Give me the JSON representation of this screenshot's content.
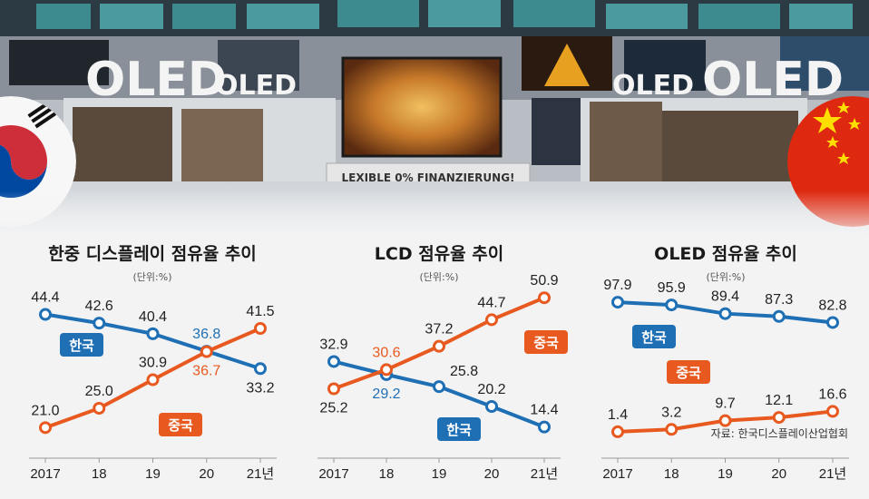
{
  "photo": {
    "logo_left": "OLED",
    "logo_left_small": "OLED",
    "logo_right_small": "OLED",
    "logo_right": "OLED",
    "banner": "LEXIBLE 0% FINANZIERUNG!"
  },
  "colors": {
    "korea": "#1f6fb5",
    "china": "#e8591f"
  },
  "legend": {
    "korea": "한국",
    "china": "중국"
  },
  "unit_label": "(단위:%)",
  "source": "자료: 한국디스플레이산업협회",
  "chart_data": [
    {
      "type": "line",
      "title": "한중 디스플레이 점유율 추이",
      "categories": [
        "2017",
        "18",
        "19",
        "20",
        "21년"
      ],
      "series": [
        {
          "name": "한국",
          "values": [
            44.4,
            42.6,
            40.4,
            36.8,
            33.2
          ],
          "labels": [
            "44.4",
            "42.6",
            "40.4",
            "36.8",
            "33.2"
          ]
        },
        {
          "name": "중국",
          "values": [
            21.0,
            25.0,
            30.9,
            36.7,
            41.5
          ],
          "labels": [
            "21.0",
            "25.0",
            "30.9",
            "36.7",
            "41.5"
          ]
        }
      ],
      "ylim": [
        19,
        46
      ]
    },
    {
      "type": "line",
      "title": "LCD 점유율 추이",
      "categories": [
        "2017",
        "18",
        "19",
        "20",
        "21년"
      ],
      "series": [
        {
          "name": "한국",
          "values": [
            32.9,
            29.2,
            25.8,
            20.2,
            14.4
          ],
          "labels": [
            "32.9",
            "29.2",
            "25.8",
            "20.2",
            "14.4"
          ]
        },
        {
          "name": "중국",
          "values": [
            25.2,
            30.6,
            37.2,
            44.7,
            50.9
          ],
          "labels": [
            "25.2",
            "30.6",
            "37.2",
            "44.7",
            "50.9"
          ]
        }
      ],
      "ylim": [
        12,
        53
      ]
    },
    {
      "type": "line",
      "title": "OLED 점유율 추이",
      "categories": [
        "2017",
        "18",
        "19",
        "20",
        "21년"
      ],
      "series": [
        {
          "name": "한국",
          "values": [
            97.9,
            95.9,
            89.4,
            87.3,
            82.8
          ],
          "labels": [
            "97.9",
            "95.9",
            "89.4",
            "87.3",
            "82.8"
          ]
        },
        {
          "name": "중국",
          "values": [
            1.4,
            3.2,
            9.7,
            12.1,
            16.6
          ],
          "labels": [
            "1.4",
            "3.2",
            "9.7",
            "12.1",
            "16.6"
          ]
        }
      ],
      "ylim": [
        0,
        100
      ]
    }
  ]
}
